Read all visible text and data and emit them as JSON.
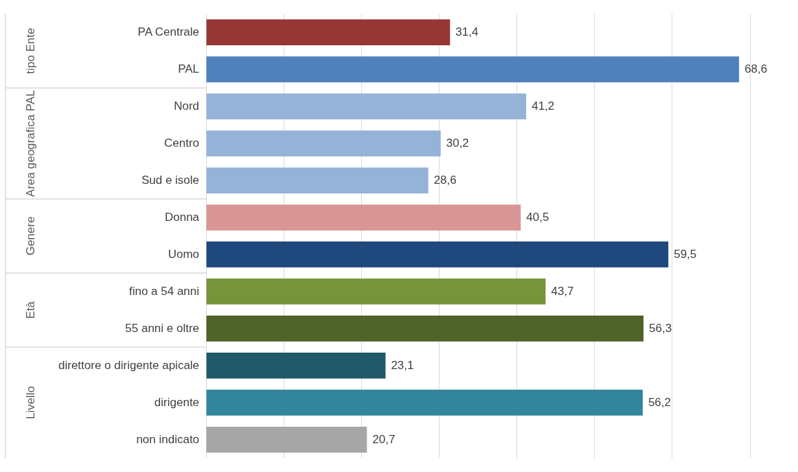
{
  "chart_data": {
    "type": "bar",
    "orientation": "horizontal",
    "categories": [
      "PA Centrale",
      "PAL",
      "Nord",
      "Centro",
      "Sud e isole",
      "Donna",
      "Uomo",
      "fino a 54 anni",
      "55 anni e oltre",
      "direttore o dirigente apicale",
      "dirigente",
      "non indicato"
    ],
    "values": [
      31.4,
      68.6,
      41.2,
      30.2,
      28.6,
      40.5,
      59.5,
      43.7,
      56.3,
      23.1,
      56.2,
      20.7
    ],
    "colors": [
      "#953735",
      "#4f81bd",
      "#95b3d7",
      "#95b3d7",
      "#95b3d7",
      "#d99694",
      "#1f497d",
      "#77933c",
      "#4f6228",
      "#215968",
      "#31859c",
      "#a6a6a6"
    ],
    "value_labels": [
      "31,4",
      "68,6",
      "41,2",
      "30,2",
      "28,6",
      "40,5",
      "59,5",
      "43,7",
      "56,3",
      "23,1",
      "56,2",
      "20,7"
    ],
    "xlim": [
      0,
      70
    ],
    "xticks": [
      {
        "value": 0,
        "label": null
      },
      {
        "value": 10,
        "label": null
      },
      {
        "value": 20,
        "label": null
      },
      {
        "value": 30,
        "label": null
      },
      {
        "value": 40,
        "label": null
      },
      {
        "value": 50,
        "label": null
      },
      {
        "value": 60,
        "label": null
      },
      {
        "value": 70,
        "label": null
      }
    ],
    "tick_labels": "y",
    "grid": "x",
    "legend": false,
    "annotations": [
      "tipo Ente",
      "Area geografica PAL",
      "Genere",
      "Età",
      "Livello"
    ]
  }
}
